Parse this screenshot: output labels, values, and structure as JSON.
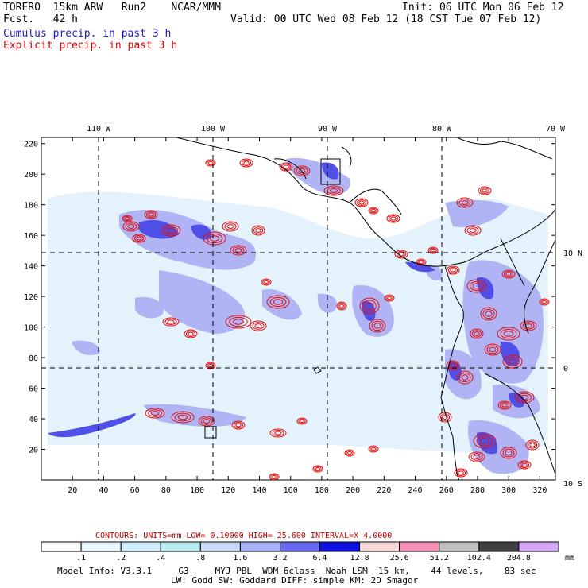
{
  "header": {
    "model_line": "TORERO  15km ARW   Run2    NCAR/MMM",
    "fcst_line": "Fcst.   42 h",
    "init": "Init: 06 UTC Mon 06 Feb 12",
    "valid": "Valid: 00 UTC Wed 08 Feb 12 (18 CST Tue 07 Feb 12)",
    "legend_cumulus": "Cumulus precip. in past 3 h",
    "legend_explicit": "Explicit precip. in past 3 h",
    "legend_cumulus_color": "#2020c0",
    "legend_explicit_color": "#e00000"
  },
  "map": {
    "top_lon_labels": [
      "110 W",
      "100 W",
      "90 W",
      "80 W",
      "70 W"
    ],
    "right_lat_labels": [
      "10 N",
      "0",
      "10 S"
    ],
    "y_grid_labels": [
      "20",
      "40",
      "60",
      "80",
      "100",
      "120",
      "140",
      "160",
      "180",
      "200",
      "220"
    ],
    "x_grid_labels": [
      "20",
      "40",
      "60",
      "80",
      "100",
      "120",
      "140",
      "160",
      "180",
      "200",
      "220",
      "240",
      "260",
      "280",
      "300",
      "320"
    ],
    "cumulus_color": "#5a5af0",
    "explicit_color": "#e01010",
    "coast_color": "#000000"
  },
  "contours_line": {
    "label": "CONTOURS:  UNITS=mm  LOW= 0.10000      HIGH=  25.600      INTERVAL=X  4.0000",
    "color": "#c00000"
  },
  "colorbar": {
    "labels": [
      ".1",
      ".2",
      ".4",
      ".8",
      "1.6",
      "3.2",
      "6.4",
      "12.8",
      "25.6",
      "51.2",
      "102.4",
      "204.8"
    ],
    "colors": [
      "#ffffff",
      "#e8f6ff",
      "#d0f0ff",
      "#b8ecf0",
      "#c8d8f8",
      "#a8b0f8",
      "#6868f0",
      "#1010e0",
      "#f8d8d8",
      "#f890b8",
      "#c0c0c0",
      "#404040",
      "#d8a8f8"
    ],
    "units": "mm"
  },
  "footer": {
    "line1": "Model Info: V3.3.1     G3     MYJ PBL  WDM 6class  Noah LSM  15 km,    44 levels,    83 sec",
    "line2": "LW: Godd SW: Goddard DIFF: simple KM: 2D Smagor"
  }
}
